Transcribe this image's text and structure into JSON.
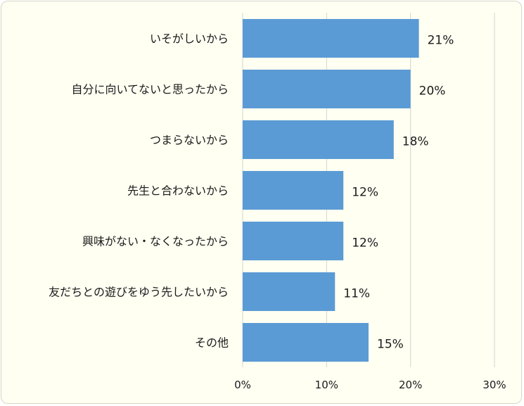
{
  "chart_data": {
    "type": "bar",
    "orientation": "horizontal",
    "categories": [
      "いそがしいから",
      "自分に向いてないと思ったから",
      "つまらないから",
      "先生と合わないから",
      "興味がない・なくなったから",
      "友だちとの遊びをゆう先したいから",
      "その他"
    ],
    "values": [
      21,
      20,
      18,
      12,
      12,
      11,
      15
    ],
    "value_labels": [
      "21%",
      "20%",
      "18%",
      "12%",
      "12%",
      "11%",
      "15%"
    ],
    "xlim": [
      0,
      30
    ],
    "x_ticks": [
      0,
      10,
      20,
      30
    ],
    "x_tick_labels": [
      "0%",
      "10%",
      "20%",
      "30%"
    ],
    "grid": true,
    "legend": "none",
    "bar_color": "#5b9bd5",
    "background_color": "#fffff2"
  }
}
